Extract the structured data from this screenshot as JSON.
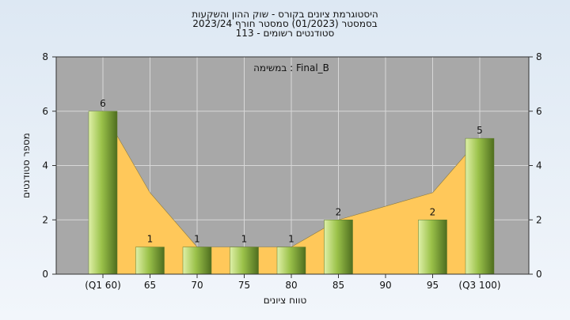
{
  "chart_data": {
    "type": "bar",
    "title_lines": [
      "היסטוגרמת ציונים בקורס - שוק ההון והשקעות",
      "בסמסטר  (01/2023)  סמסטר חורף 2023/24",
      "סטודנטים רשומים - 113"
    ],
    "xlabel": "טווח ציונים",
    "ylabel": "מספר סטודנטים",
    "legend_label": "במשימה : Final_B",
    "categories": [
      "(Q1 60)",
      "65",
      "70",
      "75",
      "80",
      "85",
      "90",
      "95",
      "(Q3 100)"
    ],
    "values": [
      6,
      1,
      1,
      1,
      1,
      2,
      null,
      2,
      5
    ],
    "area_values": [
      6,
      3,
      1,
      1,
      1,
      2,
      2.5,
      3,
      5
    ],
    "ylim": [
      0,
      8
    ],
    "yticks": [
      0,
      2,
      4,
      6,
      8
    ],
    "grid": true,
    "colors": {
      "plot_bg": "#a8a8a8",
      "area": "#ffc85a",
      "bar_light": "#dff0a8",
      "bar_mid": "#9bc24a",
      "bar_dark": "#4e6e1f",
      "grid": "#d8d8d8"
    }
  }
}
